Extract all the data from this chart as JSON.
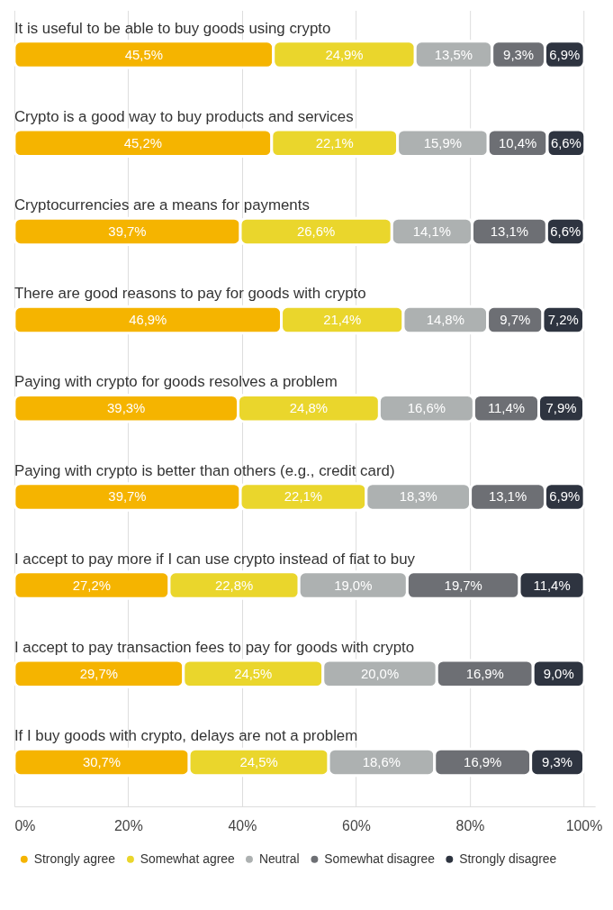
{
  "chart_data": {
    "type": "bar",
    "orientation": "horizontal",
    "stacked": true,
    "categories": [
      "It is useful to be able to buy goods using crypto",
      "Crypto is a good way to buy products and services",
      "Cryptocurrencies are a means for payments",
      "There are good reasons to pay for goods with crypto",
      "Paying with crypto for goods resolves a problem",
      "Paying with crypto is better than others (e.g., credit card)",
      "I accept to pay more if I can use crypto instead of fiat to buy",
      "I accept to pay transaction fees to pay for goods with crypto",
      "If I buy goods with crypto, delays are not a problem"
    ],
    "series": [
      {
        "name": "Strongly agree",
        "color": "#f5b400",
        "values": [
          45.5,
          45.2,
          39.7,
          46.9,
          39.3,
          39.7,
          27.2,
          29.7,
          30.7
        ],
        "value_labels": [
          "45,5%",
          "45,2%",
          "39,7%",
          "46,9%",
          "39,3%",
          "39,7%",
          "27,2%",
          "29,7%",
          "30,7%"
        ]
      },
      {
        "name": "Somewhat agree",
        "color": "#ead62c",
        "values": [
          24.9,
          22.1,
          26.6,
          21.4,
          24.8,
          22.1,
          22.8,
          24.5,
          24.5
        ],
        "value_labels": [
          "24,9%",
          "22,1%",
          "26,6%",
          "21,4%",
          "24,8%",
          "22,1%",
          "22,8%",
          "24,5%",
          "24,5%"
        ]
      },
      {
        "name": "Neutral",
        "color": "#adb1b1",
        "values": [
          13.5,
          15.9,
          14.1,
          14.8,
          16.6,
          18.3,
          19.0,
          20.0,
          18.6
        ],
        "value_labels": [
          "13,5%",
          "15,9%",
          "14,1%",
          "14,8%",
          "16,6%",
          "18,3%",
          "19,0%",
          "20,0%",
          "18,6%"
        ]
      },
      {
        "name": "Somewhat disagree",
        "color": "#6d6f74",
        "values": [
          9.3,
          10.4,
          13.1,
          9.7,
          11.4,
          13.1,
          19.7,
          16.9,
          16.9
        ],
        "value_labels": [
          "9,3%",
          "10,4%",
          "13,1%",
          "9,7%",
          "11,4%",
          "13,1%",
          "19,7%",
          "16,9%",
          "16,9%"
        ]
      },
      {
        "name": "Strongly disagree",
        "color": "#2e3440",
        "values": [
          6.9,
          6.6,
          6.6,
          7.2,
          7.9,
          6.9,
          11.4,
          9.0,
          9.3
        ],
        "value_labels": [
          "6,9%",
          "6,6%",
          "6,6%",
          "7,2%",
          "7,9%",
          "6,9%",
          "11,4%",
          "9,0%",
          "9,3%"
        ]
      }
    ],
    "xlim": [
      0,
      102
    ],
    "xticks": [
      {
        "value": 0,
        "label": "0%"
      },
      {
        "value": 20,
        "label": "20%"
      },
      {
        "value": 40,
        "label": "40%"
      },
      {
        "value": 60,
        "label": "60%"
      },
      {
        "value": 80,
        "label": "80%"
      },
      {
        "value": 100,
        "label": "100%"
      }
    ],
    "grid": "x",
    "legend": "bottom"
  }
}
